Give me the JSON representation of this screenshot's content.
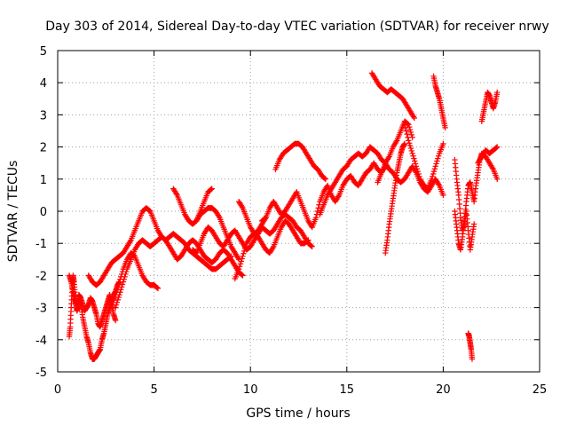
{
  "chart_data": {
    "type": "scatter",
    "title": "Day 303 of 2014, Sidereal Day-to-day VTEC variation (SDTVAR) for receiver nrwy",
    "xlabel": "GPS time / hours",
    "ylabel": "SDTVAR / TECUs",
    "xlim": [
      0,
      25
    ],
    "ylim": [
      -5,
      5
    ],
    "xticks": [
      0,
      5,
      10,
      15,
      20,
      25
    ],
    "yticks": [
      -5,
      -4,
      -3,
      -2,
      -1,
      0,
      1,
      2,
      3,
      4,
      5
    ],
    "grid": true,
    "marker": "plus",
    "color": "#ff0000",
    "series": [
      {
        "name": "SDTVAR",
        "tracks": [
          {
            "x": [
              0.6,
              0.65,
              0.7,
              0.75,
              0.8,
              0.85,
              0.9,
              0.95,
              1.0,
              1.05,
              1.1,
              1.2,
              1.3,
              1.4,
              1.5,
              1.6,
              1.7,
              1.8,
              1.9,
              2.0,
              2.1,
              2.2,
              2.3,
              2.4,
              2.5,
              2.6,
              2.7,
              2.8,
              2.9,
              3.0,
              3.1,
              3.2
            ],
            "y": [
              -3.9,
              -3.6,
              -3.0,
              -2.4,
              -2.0,
              -2.2,
              -2.6,
              -2.9,
              -3.1,
              -3.0,
              -2.8,
              -2.9,
              -3.3,
              -3.6,
              -3.9,
              -4.1,
              -4.4,
              -4.6,
              -4.6,
              -4.5,
              -4.4,
              -4.3,
              -4.0,
              -3.8,
              -3.5,
              -3.2,
              -3.0,
              -2.8,
              -2.6,
              -2.5,
              -2.3,
              -2.2
            ]
          },
          {
            "x": [
              0.6,
              0.7,
              0.8,
              0.9,
              1.0,
              1.1,
              1.2,
              1.3,
              1.4,
              1.5,
              1.6,
              1.7,
              1.8,
              1.9,
              2.0,
              2.1,
              2.2,
              2.3,
              2.4,
              2.5,
              2.6,
              2.7,
              2.8,
              2.9,
              3.0
            ],
            "y": [
              -2.0,
              -2.2,
              -2.5,
              -2.8,
              -2.9,
              -2.6,
              -2.7,
              -2.9,
              -3.1,
              -3.0,
              -2.9,
              -2.7,
              -2.8,
              -3.0,
              -3.2,
              -3.5,
              -3.6,
              -3.4,
              -3.2,
              -3.0,
              -2.8,
              -2.6,
              -2.9,
              -3.2,
              -3.4
            ]
          },
          {
            "x": [
              1.6,
              1.8,
              2.0,
              2.2,
              2.4,
              2.6,
              2.8,
              3.0,
              3.2,
              3.4,
              3.6,
              3.8,
              4.0,
              4.2,
              4.4,
              4.6,
              4.8,
              5.0,
              5.2,
              5.4,
              5.6,
              5.8,
              6.0,
              6.2,
              6.4,
              6.6,
              6.8,
              7.0,
              7.2,
              7.4,
              7.6,
              7.8,
              8.0,
              8.2,
              8.4,
              8.6,
              8.8,
              9.0
            ],
            "y": [
              -2.0,
              -2.2,
              -2.3,
              -2.2,
              -2.0,
              -1.8,
              -1.6,
              -1.5,
              -1.4,
              -1.3,
              -1.1,
              -0.9,
              -0.6,
              -0.3,
              0.0,
              0.1,
              0.0,
              -0.3,
              -0.6,
              -0.8,
              -0.9,
              -0.8,
              -0.7,
              -0.8,
              -0.9,
              -1.0,
              -1.2,
              -1.3,
              -1.4,
              -1.5,
              -1.6,
              -1.7,
              -1.8,
              -1.8,
              -1.7,
              -1.6,
              -1.5,
              -1.4
            ]
          },
          {
            "x": [
              2.8,
              3.0,
              3.2,
              3.4,
              3.6,
              3.8,
              4.0,
              4.2,
              4.4,
              4.6,
              4.8,
              5.0,
              5.2
            ],
            "y": [
              -2.9,
              -2.6,
              -2.2,
              -1.8,
              -1.5,
              -1.3,
              -1.4,
              -1.7,
              -2.0,
              -2.2,
              -2.3,
              -2.3,
              -2.4
            ]
          },
          {
            "x": [
              3.0,
              3.2,
              3.4,
              3.6,
              3.8,
              4.0,
              4.2,
              4.4,
              4.6,
              4.8,
              5.0,
              5.2,
              5.4,
              5.6,
              5.8,
              6.0,
              6.2,
              6.4,
              6.6,
              6.8,
              7.0,
              7.2,
              7.4,
              7.6,
              7.8,
              8.0,
              8.2,
              8.4,
              8.6,
              8.8,
              9.0,
              9.2,
              9.4,
              9.6
            ],
            "y": [
              -3.0,
              -2.6,
              -2.2,
              -1.8,
              -1.5,
              -1.2,
              -1.0,
              -0.9,
              -1.0,
              -1.1,
              -1.0,
              -0.9,
              -0.8,
              -0.9,
              -1.1,
              -1.3,
              -1.5,
              -1.4,
              -1.2,
              -1.0,
              -0.9,
              -1.0,
              -1.2,
              -1.4,
              -1.5,
              -1.6,
              -1.5,
              -1.3,
              -1.2,
              -1.3,
              -1.5,
              -1.7,
              -1.9,
              -2.0
            ]
          },
          {
            "x": [
              6.0,
              6.2,
              6.4,
              6.6,
              6.8,
              7.0,
              7.2,
              7.4,
              7.6,
              7.8,
              8.0,
              8.2,
              8.4,
              8.6,
              8.8,
              9.0,
              9.2,
              9.4
            ],
            "y": [
              0.7,
              0.5,
              0.2,
              -0.1,
              -0.3,
              -0.4,
              -0.3,
              -0.1,
              0.0,
              0.1,
              0.1,
              0.0,
              -0.2,
              -0.5,
              -0.8,
              -1.1,
              -1.3,
              -1.5
            ]
          },
          {
            "x": [
              7.0,
              7.2,
              7.4,
              7.6,
              7.8,
              8.0,
              8.2,
              8.4,
              8.6,
              8.8,
              9.0,
              9.2,
              9.4,
              9.6,
              9.8,
              10.0,
              10.2,
              10.4,
              10.6,
              10.8,
              11.0,
              11.2,
              11.4,
              11.6,
              11.8,
              12.0,
              12.2,
              12.4,
              12.6,
              12.8,
              13.0,
              13.2
            ],
            "y": [
              -1.2,
              -1.3,
              -1.0,
              -0.7,
              -0.5,
              -0.6,
              -0.8,
              -1.0,
              -1.1,
              -0.9,
              -0.7,
              -0.6,
              -0.8,
              -1.0,
              -1.2,
              -1.1,
              -0.9,
              -0.7,
              -0.5,
              -0.6,
              -0.7,
              -0.6,
              -0.4,
              -0.2,
              -0.1,
              -0.2,
              -0.3,
              -0.5,
              -0.6,
              -0.8,
              -1.0,
              -1.1
            ]
          },
          {
            "x": [
              7.2,
              7.4,
              7.6,
              7.8,
              8.0
            ],
            "y": [
              -0.3,
              0.0,
              0.3,
              0.6,
              0.7
            ]
          },
          {
            "x": [
              9.2,
              9.4,
              9.6,
              9.8,
              10.0,
              10.2,
              10.4,
              10.6,
              10.8,
              11.0,
              11.2,
              11.4,
              11.6,
              11.8,
              12.0,
              12.2,
              12.4,
              12.6,
              12.8,
              13.0
            ],
            "y": [
              -2.1,
              -1.8,
              -1.4,
              -1.0,
              -0.8,
              -0.7,
              -0.8,
              -1.0,
              -1.2,
              -1.3,
              -1.1,
              -0.8,
              -0.5,
              -0.3,
              -0.4,
              -0.6,
              -0.8,
              -1.0,
              -1.0,
              -0.9
            ]
          },
          {
            "x": [
              9.4,
              9.6,
              9.8,
              10.0,
              10.2,
              10.4,
              10.6,
              10.8
            ],
            "y": [
              0.3,
              0.1,
              -0.2,
              -0.5,
              -0.7,
              -0.6,
              -0.4,
              -0.2
            ]
          },
          {
            "x": [
              10.6,
              10.8,
              11.0,
              11.2,
              11.4,
              11.6,
              11.8,
              12.0,
              12.2,
              12.4,
              12.6,
              12.8,
              13.0,
              13.2,
              13.4,
              13.6,
              13.8,
              14.0,
              14.2,
              14.4,
              14.6,
              14.8,
              15.0,
              15.2,
              15.4,
              15.6,
              15.8,
              16.0,
              16.2,
              16.4,
              16.6,
              16.8,
              17.0
            ],
            "y": [
              -0.3,
              -0.2,
              0.1,
              0.3,
              0.1,
              -0.1,
              0.0,
              0.2,
              0.4,
              0.6,
              0.3,
              0.0,
              -0.3,
              -0.5,
              -0.2,
              0.3,
              0.6,
              0.8,
              0.5,
              0.3,
              0.5,
              0.8,
              1.0,
              1.1,
              0.9,
              0.8,
              1.0,
              1.2,
              1.3,
              1.5,
              1.3,
              1.2,
              1.4
            ]
          },
          {
            "x": [
              11.3,
              11.5,
              11.7,
              11.9,
              12.1,
              12.3,
              12.5,
              12.7,
              12.9,
              13.1,
              13.3,
              13.5,
              13.7,
              13.9
            ],
            "y": [
              1.3,
              1.6,
              1.8,
              1.9,
              2.0,
              2.1,
              2.1,
              2.0,
              1.8,
              1.6,
              1.4,
              1.3,
              1.1,
              1.0
            ]
          },
          {
            "x": [
              13.6,
              13.8,
              14.0,
              14.2,
              14.4,
              14.6,
              14.8,
              15.0,
              15.2,
              15.4,
              15.6,
              15.8,
              16.0,
              16.2,
              16.4,
              16.6,
              16.8,
              17.0,
              17.2,
              17.4,
              17.6,
              17.8,
              18.0,
              18.2,
              18.4,
              18.6,
              18.8,
              19.0,
              19.2,
              19.4,
              19.6,
              19.8,
              20.0
            ],
            "y": [
              -0.1,
              0.2,
              0.5,
              0.7,
              0.9,
              1.1,
              1.3,
              1.4,
              1.6,
              1.7,
              1.8,
              1.7,
              1.8,
              2.0,
              1.9,
              1.8,
              1.6,
              1.5,
              1.3,
              1.2,
              1.0,
              0.9,
              1.0,
              1.2,
              1.4,
              1.2,
              0.9,
              0.7,
              0.6,
              0.8,
              1.0,
              0.8,
              0.5
            ]
          },
          {
            "x": [
              16.3,
              16.5,
              16.7,
              16.9,
              17.1,
              17.3,
              17.5,
              17.7,
              17.9,
              18.1,
              18.3,
              18.5
            ],
            "y": [
              4.3,
              4.1,
              3.9,
              3.8,
              3.7,
              3.8,
              3.7,
              3.6,
              3.5,
              3.3,
              3.1,
              2.9
            ]
          },
          {
            "x": [
              16.6,
              16.8,
              17.0,
              17.2,
              17.4,
              17.6,
              17.8,
              18.0,
              18.2,
              18.4
            ],
            "y": [
              0.9,
              1.2,
              1.5,
              1.7,
              2.0,
              2.2,
              2.5,
              2.8,
              2.7,
              2.3
            ]
          },
          {
            "x": [
              17.0,
              17.1,
              17.2,
              17.3,
              17.4,
              17.5,
              17.6,
              17.7,
              17.8,
              17.9,
              18.0
            ],
            "y": [
              -1.3,
              -0.9,
              -0.4,
              0.0,
              0.4,
              0.8,
              1.2,
              1.5,
              1.8,
              2.0,
              2.1
            ]
          },
          {
            "x": [
              18.0,
              18.2,
              18.4,
              18.6,
              18.8,
              19.0,
              19.2,
              19.4,
              19.6,
              19.8,
              20.0
            ],
            "y": [
              2.7,
              2.2,
              1.8,
              1.4,
              1.0,
              0.8,
              0.7,
              1.0,
              1.4,
              1.8,
              2.1
            ]
          },
          {
            "x": [
              19.5,
              19.6,
              19.7,
              19.8,
              19.9,
              20.0,
              20.1
            ],
            "y": [
              4.2,
              3.9,
              3.7,
              3.5,
              3.2,
              2.9,
              2.6
            ]
          },
          {
            "x": [
              20.6,
              20.7,
              20.8,
              20.9,
              21.0,
              21.1,
              21.2,
              21.3,
              21.4,
              21.5,
              21.6,
              21.7,
              21.8,
              21.9,
              22.0,
              22.2,
              22.4,
              22.6,
              22.8
            ],
            "y": [
              0.0,
              -0.5,
              -1.0,
              -1.2,
              -0.8,
              -0.3,
              0.3,
              0.8,
              0.9,
              0.6,
              0.3,
              0.8,
              1.2,
              1.6,
              1.8,
              1.7,
              1.5,
              1.3,
              1.0
            ]
          },
          {
            "x": [
              20.6,
              20.7,
              20.8,
              20.9,
              21.0,
              21.1,
              21.2,
              21.3,
              21.4,
              21.5,
              21.6
            ],
            "y": [
              1.6,
              1.0,
              0.5,
              -0.2,
              -0.6,
              -0.4,
              0.0,
              -0.6,
              -1.2,
              -0.8,
              -0.4
            ]
          },
          {
            "x": [
              21.3,
              21.35,
              21.4,
              21.45,
              21.5
            ],
            "y": [
              -3.8,
              -3.9,
              -4.1,
              -4.3,
              -4.6
            ]
          },
          {
            "x": [
              21.8,
              22.0,
              22.2,
              22.4,
              22.6,
              22.8
            ],
            "y": [
              1.5,
              1.7,
              1.9,
              1.8,
              1.9,
              2.0
            ]
          },
          {
            "x": [
              22.0,
              22.1,
              22.2,
              22.3,
              22.4,
              22.5,
              22.6,
              22.7,
              22.8
            ],
            "y": [
              2.8,
              3.1,
              3.4,
              3.7,
              3.6,
              3.4,
              3.2,
              3.4,
              3.7
            ]
          }
        ]
      }
    ]
  }
}
